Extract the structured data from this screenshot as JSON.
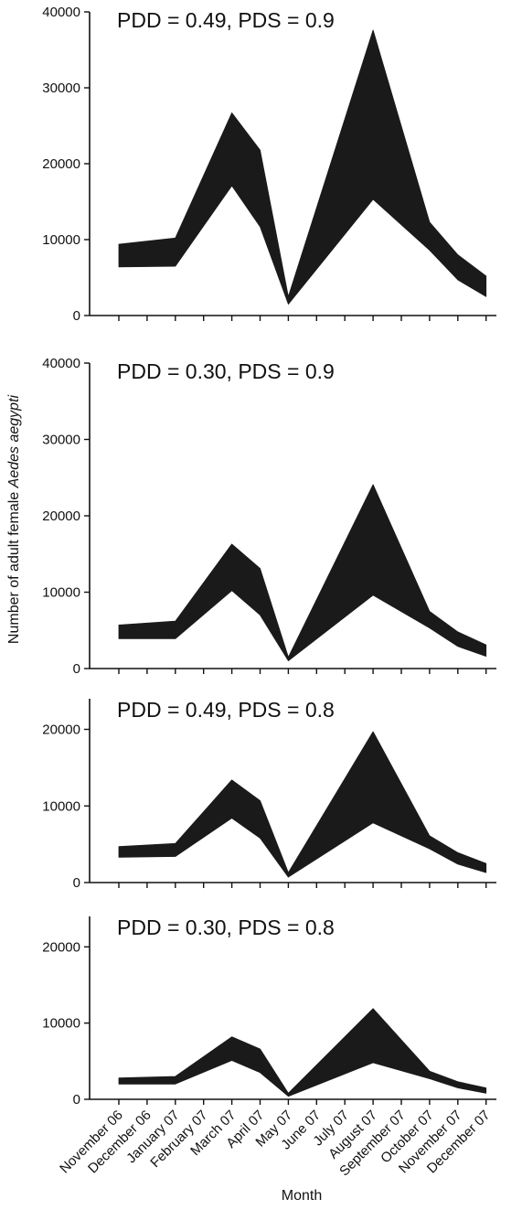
{
  "chart_data": {
    "type": "area",
    "ylabel_plain": "Number of adult female ",
    "ylabel_italic": "Aedes aegypti",
    "xlabel": "Month",
    "categories": [
      "November 06",
      "December 06",
      "January 07",
      "February 07",
      "March 07",
      "April 07",
      "May 07",
      "June 07",
      "July 07",
      "August 07",
      "September 07",
      "October 07",
      "November 07",
      "December 07"
    ],
    "panels": [
      {
        "title": "PDD = 0.49, PDS = 0.9",
        "ylim": [
          0,
          40000
        ],
        "yticks": [
          0,
          10000,
          20000,
          30000,
          40000
        ],
        "points": [
          {
            "x": 0,
            "lower": 6400,
            "upper": 9400
          },
          {
            "x": 2,
            "lower": 6500,
            "upper": 10200
          },
          {
            "x": 4,
            "lower": 17100,
            "upper": 26700
          },
          {
            "x": 5,
            "lower": 11700,
            "upper": 21800
          },
          {
            "x": 6,
            "lower": 1500,
            "upper": 2500
          },
          {
            "x": 9,
            "lower": 15300,
            "upper": 37600
          },
          {
            "x": 11,
            "lower": 8600,
            "upper": 12300
          },
          {
            "x": 12,
            "lower": 4700,
            "upper": 8000
          },
          {
            "x": 13,
            "lower": 2500,
            "upper": 5200
          }
        ]
      },
      {
        "title": "PDD = 0.30, PDS = 0.9",
        "ylim": [
          0,
          40000
        ],
        "yticks": [
          0,
          10000,
          20000,
          30000,
          40000
        ],
        "points": [
          {
            "x": 0,
            "lower": 3900,
            "upper": 5700
          },
          {
            "x": 2,
            "lower": 3900,
            "upper": 6200
          },
          {
            "x": 4,
            "lower": 10200,
            "upper": 16300
          },
          {
            "x": 5,
            "lower": 7000,
            "upper": 13100
          },
          {
            "x": 6,
            "lower": 1000,
            "upper": 1500
          },
          {
            "x": 9,
            "lower": 9600,
            "upper": 24100
          },
          {
            "x": 11,
            "lower": 5300,
            "upper": 7500
          },
          {
            "x": 12,
            "lower": 2900,
            "upper": 4800
          },
          {
            "x": 13,
            "lower": 1600,
            "upper": 3100
          }
        ]
      },
      {
        "title": "PDD = 0.49, PDS = 0.8",
        "ylim": [
          0,
          24000
        ],
        "yticks": [
          0,
          10000,
          20000
        ],
        "points": [
          {
            "x": 0,
            "lower": 3300,
            "upper": 4700
          },
          {
            "x": 2,
            "lower": 3400,
            "upper": 5100
          },
          {
            "x": 4,
            "lower": 8400,
            "upper": 13400
          },
          {
            "x": 5,
            "lower": 5800,
            "upper": 10700
          },
          {
            "x": 6,
            "lower": 700,
            "upper": 1300
          },
          {
            "x": 9,
            "lower": 7800,
            "upper": 19700
          },
          {
            "x": 11,
            "lower": 4400,
            "upper": 6100
          },
          {
            "x": 12,
            "lower": 2400,
            "upper": 3900
          },
          {
            "x": 13,
            "lower": 1300,
            "upper": 2500
          }
        ]
      },
      {
        "title": "PDD = 0.30, PDS = 0.8",
        "ylim": [
          0,
          24000
        ],
        "yticks": [
          0,
          10000,
          20000
        ],
        "points": [
          {
            "x": 0,
            "lower": 2000,
            "upper": 2800
          },
          {
            "x": 2,
            "lower": 2000,
            "upper": 3000
          },
          {
            "x": 4,
            "lower": 5100,
            "upper": 8200
          },
          {
            "x": 5,
            "lower": 3500,
            "upper": 6600
          },
          {
            "x": 6,
            "lower": 400,
            "upper": 800
          },
          {
            "x": 9,
            "lower": 4800,
            "upper": 11900
          },
          {
            "x": 11,
            "lower": 2700,
            "upper": 3700
          },
          {
            "x": 12,
            "lower": 1500,
            "upper": 2300
          },
          {
            "x": 13,
            "lower": 800,
            "upper": 1500
          }
        ]
      }
    ],
    "colors": {
      "band": "#1a1a1a",
      "axis": "#111111"
    }
  }
}
